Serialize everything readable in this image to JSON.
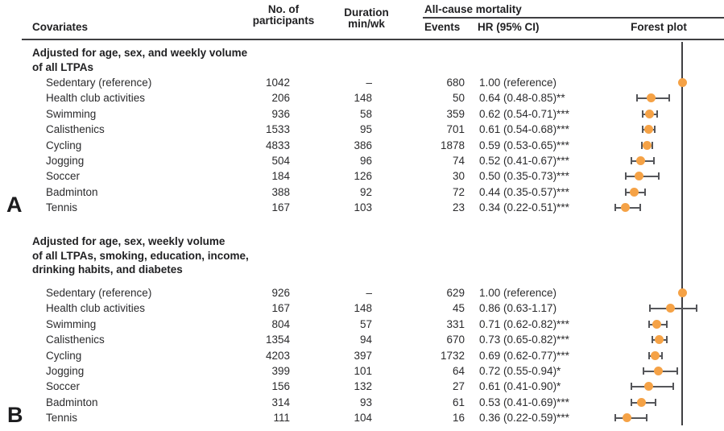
{
  "header": {
    "covariates": "Covariates",
    "participants_line1": "No. of",
    "participants_line2": "participants",
    "duration_line1": "Duration",
    "duration_line2": "min/wk",
    "mortality_group": "All-cause mortality",
    "events": "Events",
    "hr_ci": "HR (95% CI)",
    "forest_plot": "Forest plot"
  },
  "colors": {
    "marker_orange": "#F5A246",
    "whisker_gray": "#55565A",
    "axis_gray": "#55565A",
    "text_dark": "#212123"
  },
  "chart_data": {
    "type": "forest",
    "x_axis": {
      "scale": "linear",
      "reference_line_hr": 1.0,
      "ticks_shown": false
    },
    "columns": [
      "Covariates",
      "No. of participants",
      "Duration min/wk",
      "Events",
      "HR (95% CI)",
      "Forest plot"
    ],
    "panels": [
      {
        "label": "A",
        "note_lines": [
          "Adjusted for age, sex, and weekly volume",
          "of all LTPAs"
        ],
        "rows": [
          {
            "covariate": "Sedentary (reference)",
            "participants": "1042",
            "duration": "–",
            "events": "680",
            "hr_text": "1.00 (reference)",
            "hr": 1.0,
            "ci": null
          },
          {
            "covariate": "Health club activities",
            "participants": "206",
            "duration": "148",
            "events": "50",
            "hr_text": "0.64 (0.48-0.85)**",
            "hr": 0.64,
            "ci": [
              0.48,
              0.85
            ]
          },
          {
            "covariate": "Swimming",
            "participants": "936",
            "duration": "58",
            "events": "359",
            "hr_text": "0.62 (0.54-0.71)***",
            "hr": 0.62,
            "ci": [
              0.54,
              0.71
            ]
          },
          {
            "covariate": "Calisthenics",
            "participants": "1533",
            "duration": "95",
            "events": "701",
            "hr_text": "0.61 (0.54-0.68)***",
            "hr": 0.61,
            "ci": [
              0.54,
              0.68
            ]
          },
          {
            "covariate": "Cycling",
            "participants": "4833",
            "duration": "386",
            "events": "1878",
            "hr_text": "0.59 (0.53-0.65)***",
            "hr": 0.59,
            "ci": [
              0.53,
              0.65
            ]
          },
          {
            "covariate": "Jogging",
            "participants": "504",
            "duration": "96",
            "events": "74",
            "hr_text": "0.52 (0.41-0.67)***",
            "hr": 0.52,
            "ci": [
              0.41,
              0.67
            ]
          },
          {
            "covariate": "Soccer",
            "participants": "184",
            "duration": "126",
            "events": "30",
            "hr_text": "0.50 (0.35-0.73)***",
            "hr": 0.5,
            "ci": [
              0.35,
              0.73
            ]
          },
          {
            "covariate": "Badminton",
            "participants": "388",
            "duration": "92",
            "events": "72",
            "hr_text": "0.44 (0.35-0.57)***",
            "hr": 0.44,
            "ci": [
              0.35,
              0.57
            ]
          },
          {
            "covariate": "Tennis",
            "participants": "167",
            "duration": "103",
            "events": "23",
            "hr_text": "0.34 (0.22-0.51)***",
            "hr": 0.34,
            "ci": [
              0.22,
              0.51
            ]
          }
        ]
      },
      {
        "label": "B",
        "note_lines": [
          "Adjusted for age, sex, weekly volume",
          "of all LTPAs, smoking, education, income,",
          "drinking habits, and diabetes"
        ],
        "rows": [
          {
            "covariate": "Sedentary (reference)",
            "participants": "926",
            "duration": "–",
            "events": "629",
            "hr_text": "1.00 (reference)",
            "hr": 1.0,
            "ci": null
          },
          {
            "covariate": "Health club activities",
            "participants": "167",
            "duration": "148",
            "events": "45",
            "hr_text": "0.86 (0.63-1.17)",
            "hr": 0.86,
            "ci": [
              0.63,
              1.17
            ]
          },
          {
            "covariate": "Swimming",
            "participants": "804",
            "duration": "57",
            "events": "331",
            "hr_text": "0.71 (0.62-0.82)***",
            "hr": 0.71,
            "ci": [
              0.62,
              0.82
            ]
          },
          {
            "covariate": "Calisthenics",
            "participants": "1354",
            "duration": "94",
            "events": "670",
            "hr_text": "0.73 (0.65-0.82)***",
            "hr": 0.73,
            "ci": [
              0.65,
              0.82
            ]
          },
          {
            "covariate": "Cycling",
            "participants": "4203",
            "duration": "397",
            "events": "1732",
            "hr_text": "0.69 (0.62-0.77)***",
            "hr": 0.69,
            "ci": [
              0.62,
              0.77
            ]
          },
          {
            "covariate": "Jogging",
            "participants": "399",
            "duration": "101",
            "events": "64",
            "hr_text": "0.72 (0.55-0.94)*",
            "hr": 0.72,
            "ci": [
              0.55,
              0.94
            ]
          },
          {
            "covariate": "Soccer",
            "participants": "156",
            "duration": "132",
            "events": "27",
            "hr_text": "0.61 (0.41-0.90)*",
            "hr": 0.61,
            "ci": [
              0.41,
              0.9
            ]
          },
          {
            "covariate": "Badminton",
            "participants": "314",
            "duration": "93",
            "events": "61",
            "hr_text": "0.53 (0.41-0.69)***",
            "hr": 0.53,
            "ci": [
              0.41,
              0.69
            ]
          },
          {
            "covariate": "Tennis",
            "participants": "111",
            "duration": "104",
            "events": "16",
            "hr_text": "0.36 (0.22-0.59)***",
            "hr": 0.36,
            "ci": [
              0.22,
              0.59
            ]
          }
        ]
      }
    ]
  }
}
